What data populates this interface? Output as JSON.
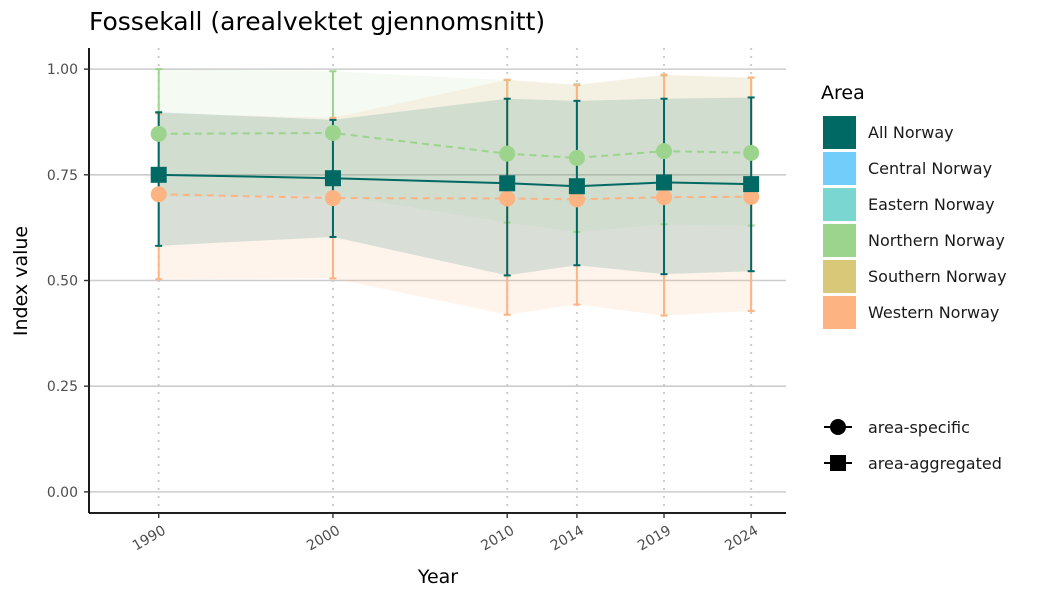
{
  "chart_data": {
    "type": "line",
    "title": "Fossekall (arealvektet gjennomsnitt)",
    "xlabel": "Year",
    "ylabel": "Index value",
    "x": [
      1990,
      2000,
      2010,
      2014,
      2019,
      2024
    ],
    "xlim": [
      1986,
      2026
    ],
    "ylim": [
      -0.05,
      1.05
    ],
    "yticks": [
      0.0,
      0.25,
      0.5,
      0.75,
      1.0
    ],
    "ytick_labels": [
      "0.00",
      "0.25",
      "0.50",
      "0.75",
      "1.00"
    ],
    "grid": "horizontal major lines; dotted vertical lines at data years",
    "legend_position": "right",
    "series": [
      {
        "name": "All Norway",
        "color": "#006964",
        "linestyle": "solid",
        "marker": "square",
        "values": [
          0.75,
          0.742,
          0.73,
          0.723,
          0.732,
          0.728
        ],
        "lower": [
          0.582,
          0.603,
          0.512,
          0.536,
          0.515,
          0.522
        ],
        "upper": [
          0.898,
          0.88,
          0.93,
          0.925,
          0.93,
          0.933
        ]
      },
      {
        "name": "Northern Norway",
        "color": "#9dd48d",
        "linestyle": "dashed",
        "marker": "circle",
        "values": [
          0.847,
          0.849,
          0.8,
          0.79,
          0.806,
          0.802
        ],
        "lower": [
          0.697,
          0.703,
          0.637,
          0.615,
          0.633,
          0.63
        ],
        "upper": [
          1.0,
          0.995,
          0.974,
          0.964,
          0.985,
          0.98
        ]
      },
      {
        "name": "Western Norway",
        "color": "#fdb382",
        "linestyle": "dashed",
        "marker": "circle",
        "values": [
          0.704,
          0.695,
          0.694,
          0.692,
          0.697,
          0.698
        ],
        "lower": [
          0.503,
          0.505,
          0.419,
          0.443,
          0.417,
          0.428
        ],
        "upper": [
          0.895,
          0.885,
          0.975,
          0.962,
          0.987,
          0.98
        ]
      }
    ],
    "legend": {
      "title": "Area",
      "items": [
        {
          "label": "All Norway",
          "color": "#006964"
        },
        {
          "label": "Central Norway",
          "color": "#73cdfb"
        },
        {
          "label": "Eastern Norway",
          "color": "#7ad6d0"
        },
        {
          "label": "Northern Norway",
          "color": "#9dd48d"
        },
        {
          "label": "Southern Norway",
          "color": "#d9c877"
        },
        {
          "label": "Western Norway",
          "color": "#fdb382"
        }
      ],
      "shape_items": [
        {
          "label": "area-specific",
          "shape": "circle"
        },
        {
          "label": "area-aggregated",
          "shape": "square"
        }
      ]
    }
  }
}
